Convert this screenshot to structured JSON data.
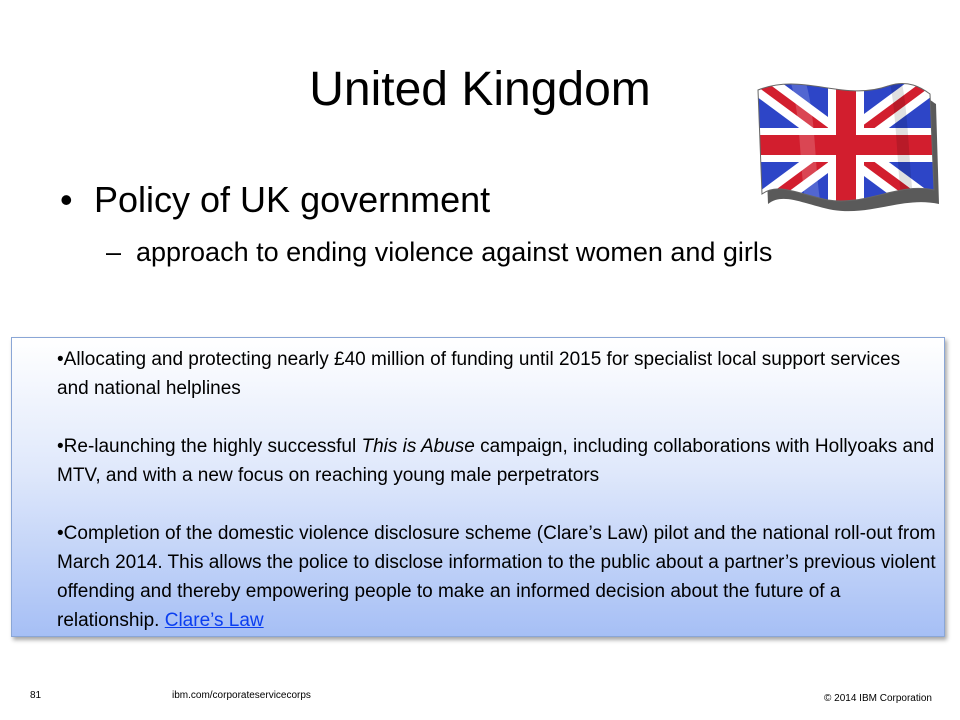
{
  "slide": {
    "title": "United Kingdom",
    "bullet": "Policy of UK government",
    "bullet_marker": "•",
    "sub_marker": "–",
    "sub_bullet": "approach to ending violence against women and girls"
  },
  "info_box": {
    "item1": "•Allocating and protecting nearly £40 million of funding until 2015 for specialist local support services and national helplines",
    "item2_prefix": "•Re-launching the highly successful ",
    "item2_italic": "This is Abuse",
    "item2_suffix": " campaign, including collaborations with Hollyoaks and MTV, and with a new focus on reaching young male perpetrators",
    "item3": "•Completion of the domestic violence disclosure scheme (Clare’s Law) pilot and the national roll-out from March 2014. This allows the police to disclose information to the public about a partner’s previous violent offending and thereby empowering people to make an informed decision about the future of a relationship.",
    "item3_link": "Clare’s Law"
  },
  "footer": {
    "page_number": "81",
    "url": "ibm.com/corporateservicecorps",
    "copyright": "© 2014 IBM  Corporation"
  },
  "icons": {
    "flag": "union-jack-flag"
  },
  "colors": {
    "flag_blue": "#2d45c7",
    "flag_red": "#d21e2e",
    "link": "#0b3ef0",
    "box_gradient_bottom": "#a6bff5"
  }
}
